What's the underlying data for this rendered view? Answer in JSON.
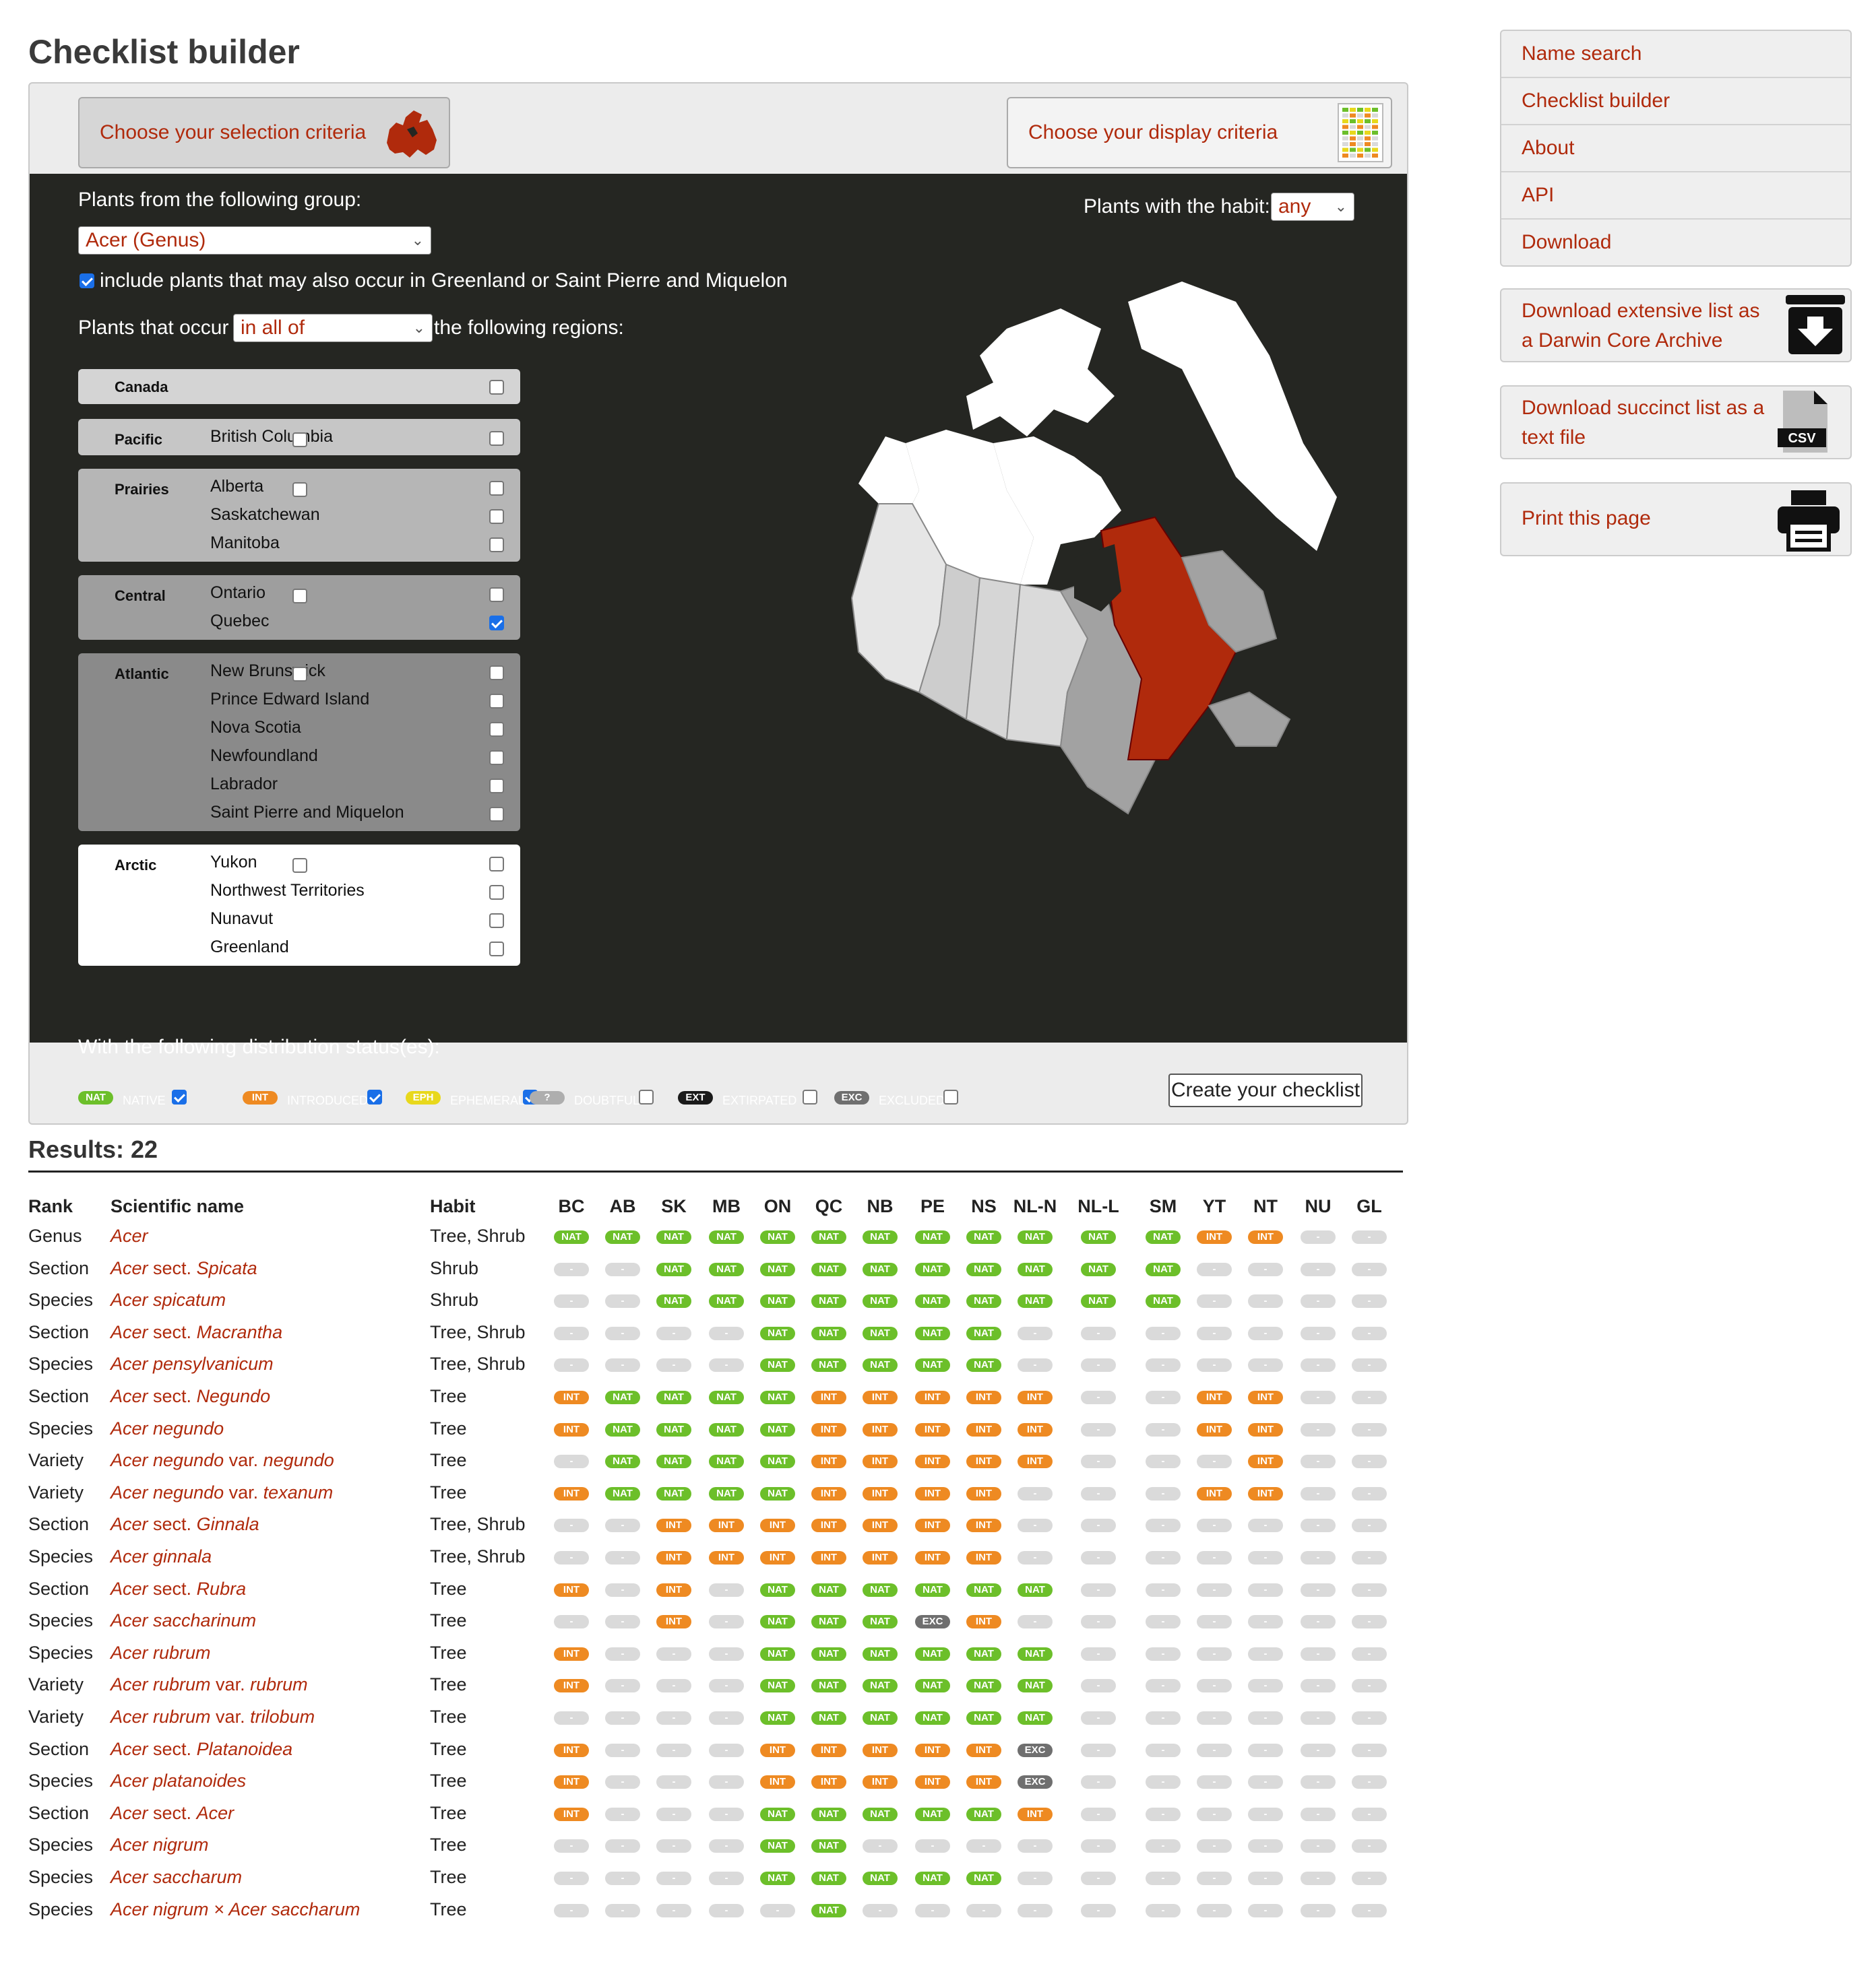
{
  "title": "Checklist builder",
  "tabs": {
    "selection": "Choose your selection criteria",
    "display": "Choose your display criteria"
  },
  "group": {
    "label": "Plants from the following group:",
    "value": "Acer (Genus)"
  },
  "habit": {
    "label": "Plants with the habit:",
    "value": "any"
  },
  "include_greenland": {
    "label": "include plants that may also occur in Greenland or Saint Pierre and Miquelon",
    "checked": true
  },
  "occur": {
    "prefix": "Plants that occur",
    "value": "in all of",
    "suffix": "the following regions:"
  },
  "regions": [
    {
      "name": "Canada",
      "provinces": []
    },
    {
      "name": "Pacific",
      "provinces": [
        "British Columbia"
      ]
    },
    {
      "name": "Prairies",
      "provinces": [
        "Alberta",
        "Saskatchewan",
        "Manitoba"
      ]
    },
    {
      "name": "Central",
      "provinces": [
        "Ontario",
        "Quebec"
      ]
    },
    {
      "name": "Atlantic",
      "provinces": [
        "New Brunswick",
        "Prince Edward Island",
        "Nova Scotia",
        "Newfoundland",
        "Labrador",
        "Saint Pierre and Miquelon"
      ]
    },
    {
      "name": "Arctic",
      "provinces": [
        "Yukon",
        "Northwest Territories",
        "Nunavut",
        "Greenland"
      ]
    }
  ],
  "selected_region": "Quebec",
  "status": {
    "label": "With the following distribution status(es):",
    "items": [
      {
        "badge": "NAT",
        "label": "NATIVE",
        "checked": true
      },
      {
        "badge": "INT",
        "label": "INTRODUCED",
        "checked": true
      },
      {
        "badge": "EPH",
        "label": "EPHEMERAL",
        "checked": true
      },
      {
        "badge": "?",
        "label": "DOUBTFUL",
        "checked": false
      },
      {
        "badge": "EXT",
        "label": "EXTIRPATED",
        "checked": false
      },
      {
        "badge": "EXC",
        "label": "EXCLUDED",
        "checked": false
      }
    ]
  },
  "create_button": "Create your checklist",
  "nav": [
    "Name search",
    "Checklist builder",
    "About",
    "API",
    "Download"
  ],
  "side": {
    "dwca_line1": "Download extensive list as",
    "dwca_line2": "a Darwin Core Archive",
    "text_line1": "Download succinct list as a",
    "text_line2": "text file",
    "csv_label": "CSV",
    "print": "Print this page"
  },
  "results": {
    "title": "Results: 22",
    "headers": {
      "rank": "Rank",
      "name": "Scientific name",
      "habit": "Habit"
    },
    "regions": [
      "BC",
      "AB",
      "SK",
      "MB",
      "ON",
      "QC",
      "NB",
      "PE",
      "NS",
      "NL-N",
      "NL-L",
      "SM",
      "YT",
      "NT",
      "NU",
      "GL"
    ],
    "rows": [
      {
        "rank": "Genus",
        "name": "Acer",
        "name_parts": [
          [
            "Acer",
            true
          ]
        ],
        "habit": "Tree, Shrub",
        "status": [
          "NAT",
          "NAT",
          "NAT",
          "NAT",
          "NAT",
          "NAT",
          "NAT",
          "NAT",
          "NAT",
          "NAT",
          "NAT",
          "NAT",
          "INT",
          "INT",
          "",
          ""
        ]
      },
      {
        "rank": "Section",
        "name": "Acer sect. Spicata",
        "name_parts": [
          [
            "Acer",
            true
          ],
          [
            " sect. ",
            false
          ],
          [
            "Spicata",
            true
          ]
        ],
        "habit": "Shrub",
        "status": [
          "",
          "",
          "NAT",
          "NAT",
          "NAT",
          "NAT",
          "NAT",
          "NAT",
          "NAT",
          "NAT",
          "NAT",
          "NAT",
          "",
          "",
          "",
          ""
        ]
      },
      {
        "rank": "Species",
        "name": "Acer spicatum",
        "name_parts": [
          [
            "Acer spicatum",
            true
          ]
        ],
        "habit": "Shrub",
        "status": [
          "",
          "",
          "NAT",
          "NAT",
          "NAT",
          "NAT",
          "NAT",
          "NAT",
          "NAT",
          "NAT",
          "NAT",
          "NAT",
          "",
          "",
          "",
          ""
        ]
      },
      {
        "rank": "Section",
        "name": "Acer sect. Macrantha",
        "name_parts": [
          [
            "Acer",
            true
          ],
          [
            " sect. ",
            false
          ],
          [
            "Macrantha",
            true
          ]
        ],
        "habit": "Tree, Shrub",
        "status": [
          "",
          "",
          "",
          "",
          "NAT",
          "NAT",
          "NAT",
          "NAT",
          "NAT",
          "",
          "",
          "",
          "",
          "",
          "",
          ""
        ]
      },
      {
        "rank": "Species",
        "name": "Acer pensylvanicum",
        "name_parts": [
          [
            "Acer pensylvanicum",
            true
          ]
        ],
        "habit": "Tree, Shrub",
        "status": [
          "",
          "",
          "",
          "",
          "NAT",
          "NAT",
          "NAT",
          "NAT",
          "NAT",
          "",
          "",
          "",
          "",
          "",
          "",
          ""
        ]
      },
      {
        "rank": "Section",
        "name": "Acer sect. Negundo",
        "name_parts": [
          [
            "Acer",
            true
          ],
          [
            " sect. ",
            false
          ],
          [
            "Negundo",
            true
          ]
        ],
        "habit": "Tree",
        "status": [
          "INT",
          "NAT",
          "NAT",
          "NAT",
          "NAT",
          "INT",
          "INT",
          "INT",
          "INT",
          "INT",
          "",
          "",
          "INT",
          "INT",
          "",
          ""
        ]
      },
      {
        "rank": "Species",
        "name": "Acer negundo",
        "name_parts": [
          [
            "Acer negundo",
            true
          ]
        ],
        "habit": "Tree",
        "status": [
          "INT",
          "NAT",
          "NAT",
          "NAT",
          "NAT",
          "INT",
          "INT",
          "INT",
          "INT",
          "INT",
          "",
          "",
          "INT",
          "INT",
          "",
          ""
        ]
      },
      {
        "rank": "Variety",
        "name": "Acer negundo var. negundo",
        "name_parts": [
          [
            "Acer negundo",
            true
          ],
          [
            " var. ",
            false
          ],
          [
            "negundo",
            true
          ]
        ],
        "habit": "Tree",
        "status": [
          "",
          "NAT",
          "NAT",
          "NAT",
          "NAT",
          "INT",
          "INT",
          "INT",
          "INT",
          "INT",
          "",
          "",
          "",
          "INT",
          "",
          ""
        ]
      },
      {
        "rank": "Variety",
        "name": "Acer negundo var. texanum",
        "name_parts": [
          [
            "Acer negundo",
            true
          ],
          [
            " var. ",
            false
          ],
          [
            "texanum",
            true
          ]
        ],
        "habit": "Tree",
        "status": [
          "INT",
          "NAT",
          "NAT",
          "NAT",
          "NAT",
          "INT",
          "INT",
          "INT",
          "INT",
          "",
          "",
          "",
          "INT",
          "INT",
          "",
          ""
        ]
      },
      {
        "rank": "Section",
        "name": "Acer sect. Ginnala",
        "name_parts": [
          [
            "Acer",
            true
          ],
          [
            " sect. ",
            false
          ],
          [
            "Ginnala",
            true
          ]
        ],
        "habit": "Tree, Shrub",
        "status": [
          "",
          "",
          "INT",
          "INT",
          "INT",
          "INT",
          "INT",
          "INT",
          "INT",
          "",
          "",
          "",
          "",
          "",
          "",
          ""
        ]
      },
      {
        "rank": "Species",
        "name": "Acer ginnala",
        "name_parts": [
          [
            "Acer ginnala",
            true
          ]
        ],
        "habit": "Tree, Shrub",
        "status": [
          "",
          "",
          "INT",
          "INT",
          "INT",
          "INT",
          "INT",
          "INT",
          "INT",
          "",
          "",
          "",
          "",
          "",
          "",
          ""
        ]
      },
      {
        "rank": "Section",
        "name": "Acer sect. Rubra",
        "name_parts": [
          [
            "Acer",
            true
          ],
          [
            " sect. ",
            false
          ],
          [
            "Rubra",
            true
          ]
        ],
        "habit": "Tree",
        "status": [
          "INT",
          "",
          "INT",
          "",
          "NAT",
          "NAT",
          "NAT",
          "NAT",
          "NAT",
          "NAT",
          "",
          "",
          "",
          "",
          "",
          ""
        ]
      },
      {
        "rank": "Species",
        "name": "Acer saccharinum",
        "name_parts": [
          [
            "Acer saccharinum",
            true
          ]
        ],
        "habit": "Tree",
        "status": [
          "",
          "",
          "INT",
          "",
          "NAT",
          "NAT",
          "NAT",
          "EXC",
          "INT",
          "",
          "",
          "",
          "",
          "",
          "",
          ""
        ]
      },
      {
        "rank": "Species",
        "name": "Acer rubrum",
        "name_parts": [
          [
            "Acer rubrum",
            true
          ]
        ],
        "habit": "Tree",
        "status": [
          "INT",
          "",
          "",
          "",
          "NAT",
          "NAT",
          "NAT",
          "NAT",
          "NAT",
          "NAT",
          "",
          "",
          "",
          "",
          "",
          ""
        ]
      },
      {
        "rank": "Variety",
        "name": "Acer rubrum var. rubrum",
        "name_parts": [
          [
            "Acer rubrum",
            true
          ],
          [
            " var. ",
            false
          ],
          [
            "rubrum",
            true
          ]
        ],
        "habit": "Tree",
        "status": [
          "INT",
          "",
          "",
          "",
          "NAT",
          "NAT",
          "NAT",
          "NAT",
          "NAT",
          "NAT",
          "",
          "",
          "",
          "",
          "",
          ""
        ]
      },
      {
        "rank": "Variety",
        "name": "Acer rubrum var. trilobum",
        "name_parts": [
          [
            "Acer rubrum",
            true
          ],
          [
            " var. ",
            false
          ],
          [
            "trilobum",
            true
          ]
        ],
        "habit": "Tree",
        "status": [
          "",
          "",
          "",
          "",
          "NAT",
          "NAT",
          "NAT",
          "NAT",
          "NAT",
          "NAT",
          "",
          "",
          "",
          "",
          "",
          ""
        ]
      },
      {
        "rank": "Section",
        "name": "Acer sect. Platanoidea",
        "name_parts": [
          [
            "Acer",
            true
          ],
          [
            " sect. ",
            false
          ],
          [
            "Platanoidea",
            true
          ]
        ],
        "habit": "Tree",
        "status": [
          "INT",
          "",
          "",
          "",
          "INT",
          "INT",
          "INT",
          "INT",
          "INT",
          "EXC",
          "",
          "",
          "",
          "",
          "",
          ""
        ]
      },
      {
        "rank": "Species",
        "name": "Acer platanoides",
        "name_parts": [
          [
            "Acer platanoides",
            true
          ]
        ],
        "habit": "Tree",
        "status": [
          "INT",
          "",
          "",
          "",
          "INT",
          "INT",
          "INT",
          "INT",
          "INT",
          "EXC",
          "",
          "",
          "",
          "",
          "",
          ""
        ]
      },
      {
        "rank": "Section",
        "name": "Acer sect. Acer",
        "name_parts": [
          [
            "Acer",
            true
          ],
          [
            " sect. ",
            false
          ],
          [
            "Acer",
            true
          ]
        ],
        "habit": "Tree",
        "status": [
          "INT",
          "",
          "",
          "",
          "NAT",
          "NAT",
          "NAT",
          "NAT",
          "NAT",
          "INT",
          "",
          "",
          "",
          "",
          "",
          ""
        ]
      },
      {
        "rank": "Species",
        "name": "Acer nigrum",
        "name_parts": [
          [
            "Acer nigrum",
            true
          ]
        ],
        "habit": "Tree",
        "status": [
          "",
          "",
          "",
          "",
          "NAT",
          "NAT",
          "",
          "",
          "",
          "",
          "",
          "",
          "",
          "",
          "",
          ""
        ]
      },
      {
        "rank": "Species",
        "name": "Acer saccharum",
        "name_parts": [
          [
            "Acer saccharum",
            true
          ]
        ],
        "habit": "Tree",
        "status": [
          "",
          "",
          "",
          "",
          "NAT",
          "NAT",
          "NAT",
          "NAT",
          "NAT",
          "",
          "",
          "",
          "",
          "",
          "",
          ""
        ]
      },
      {
        "rank": "Species",
        "name": "Acer nigrum × Acer saccharum",
        "name_parts": [
          [
            "Acer nigrum × Acer saccharum",
            true
          ]
        ],
        "habit": "Tree",
        "status": [
          "",
          "",
          "",
          "",
          "",
          "NAT",
          "",
          "",
          "",
          "",
          "",
          "",
          "",
          "",
          "",
          ""
        ]
      }
    ]
  },
  "colors": {
    "accent": "#b02a0c",
    "native": "#6cbf2a",
    "introduced": "#ee8a22",
    "ephemeral": "#e8d81c",
    "excluded": "#6f6f6f",
    "panel_dark": "#252622",
    "quebec": "#b02a0c"
  }
}
